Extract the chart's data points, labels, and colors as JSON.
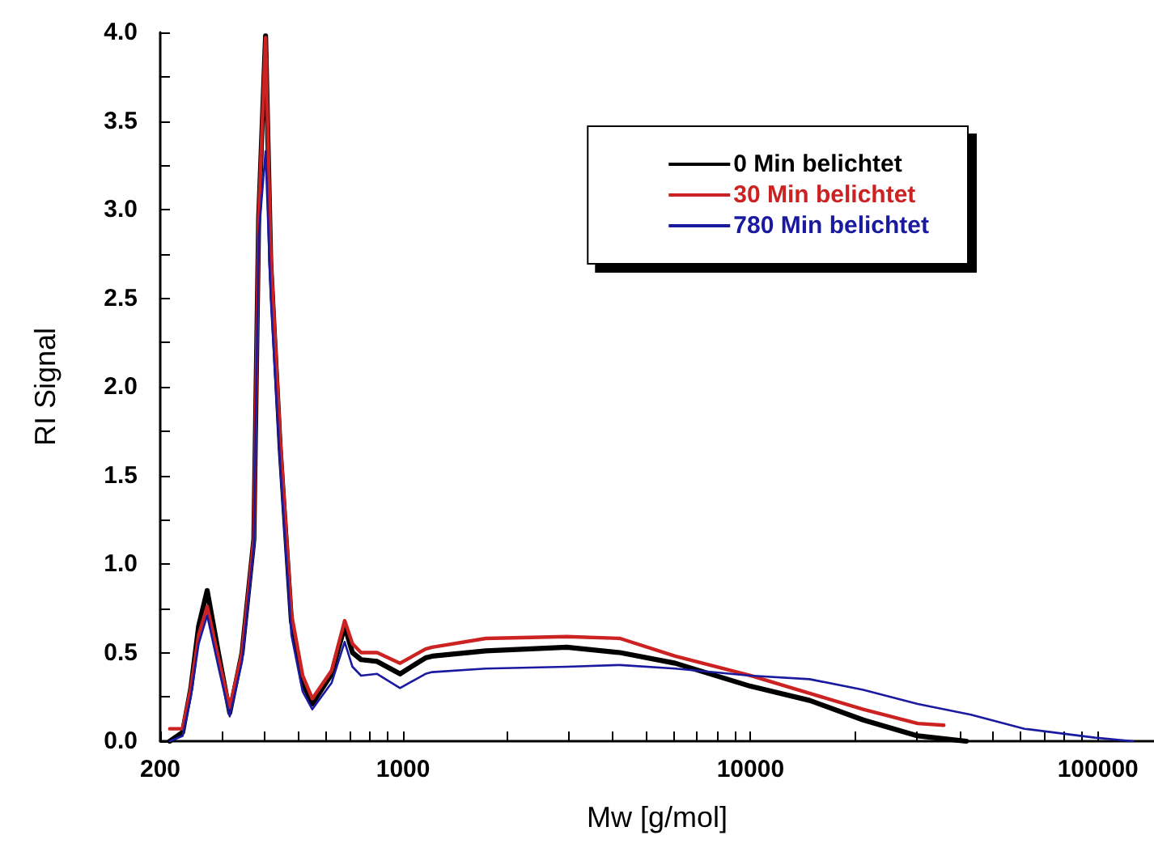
{
  "chart_data": {
    "type": "line",
    "xlabel": "Mw [g/mol]",
    "ylabel": "RI Signal",
    "log": "x",
    "xlim": [
      200,
      145000
    ],
    "xticks": [
      200,
      {
        "value": 300,
        "label": null
      },
      {
        "value": 400,
        "label": null
      },
      {
        "value": 500,
        "label": null
      },
      {
        "value": 600,
        "label": null
      },
      {
        "value": 700,
        "label": null
      },
      {
        "value": 800,
        "label": null
      },
      {
        "value": 900,
        "label": null
      },
      1000,
      {
        "value": 2000,
        "label": null
      },
      {
        "value": 3000,
        "label": null
      },
      {
        "value": 4000,
        "label": null
      },
      {
        "value": 5000,
        "label": null
      },
      {
        "value": 6000,
        "label": null
      },
      {
        "value": 7000,
        "label": null
      },
      {
        "value": 8000,
        "label": null
      },
      {
        "value": 9000,
        "label": null
      },
      10000,
      {
        "value": 20000,
        "label": null
      },
      {
        "value": 30000,
        "label": null
      },
      {
        "value": 40000,
        "label": null
      },
      {
        "value": 50000,
        "label": null
      },
      {
        "value": 60000,
        "label": null
      },
      {
        "value": 70000,
        "label": null
      },
      {
        "value": 80000,
        "label": null
      },
      {
        "value": 90000,
        "label": null
      },
      100000
    ],
    "ylim": [
      0,
      4
    ],
    "yticks": [
      {
        "value": 0,
        "label": "0.0"
      },
      {
        "value": 0.25,
        "label": null
      },
      {
        "value": 0.5,
        "label": "0.5"
      },
      {
        "value": 0.75,
        "label": null
      },
      {
        "value": 1,
        "label": "1.0"
      },
      {
        "value": 1.25,
        "label": null
      },
      {
        "value": 1.5,
        "label": "1.5"
      },
      {
        "value": 1.75,
        "label": null
      },
      {
        "value": 2,
        "label": "2.0"
      },
      {
        "value": 2.25,
        "label": null
      },
      {
        "value": 2.5,
        "label": "2.5"
      },
      {
        "value": 2.75,
        "label": null
      },
      {
        "value": 3,
        "label": "3.0"
      },
      {
        "value": 3.25,
        "label": null
      },
      {
        "value": 3.5,
        "label": "3.5"
      },
      {
        "value": 3.75,
        "label": null
      },
      {
        "value": 4,
        "label": "4.0"
      }
    ],
    "grid": false,
    "legend": "top right",
    "marker": "none",
    "line_style": "solid",
    "series": [
      {
        "name": "0 Min belichtet",
        "color": "#000000",
        "x": [
          213,
          232,
          245,
          258,
          273,
          294,
          317,
          344,
          372,
          384,
          402,
          416,
          443,
          477,
          514,
          548,
          623,
          679,
          715,
          757,
          842,
          980,
          1160,
          1213,
          1730,
          2960,
          4210,
          6070,
          10000,
          14800,
          21100,
          30300,
          41800
        ],
        "values": [
          0.0,
          0.05,
          0.3,
          0.65,
          0.85,
          0.5,
          0.16,
          0.5,
          1.14,
          2.95,
          3.98,
          2.7,
          1.65,
          0.68,
          0.33,
          0.21,
          0.38,
          0.65,
          0.5,
          0.46,
          0.45,
          0.38,
          0.47,
          0.48,
          0.51,
          0.53,
          0.5,
          0.44,
          0.31,
          0.23,
          0.12,
          0.03,
          0.0
        ]
      },
      {
        "name": "30 Min belichtet",
        "color": "#cc2222",
        "x": [
          213,
          232,
          245,
          258,
          273,
          294,
          317,
          344,
          372,
          384,
          402,
          416,
          443,
          477,
          514,
          548,
          623,
          679,
          715,
          757,
          842,
          980,
          1160,
          1213,
          1730,
          2960,
          4210,
          6070,
          10000,
          14800,
          21100,
          30300,
          36000
        ],
        "values": [
          0.07,
          0.07,
          0.3,
          0.6,
          0.76,
          0.47,
          0.19,
          0.5,
          1.14,
          2.95,
          3.97,
          2.75,
          1.7,
          0.72,
          0.37,
          0.24,
          0.4,
          0.68,
          0.55,
          0.5,
          0.5,
          0.44,
          0.52,
          0.53,
          0.58,
          0.59,
          0.58,
          0.48,
          0.37,
          0.27,
          0.18,
          0.1,
          0.09
        ]
      },
      {
        "name": "780 Min belichtet",
        "color": "#1a1aa0",
        "x": [
          213,
          232,
          245,
          258,
          273,
          294,
          317,
          344,
          372,
          384,
          402,
          416,
          443,
          477,
          514,
          548,
          623,
          679,
          715,
          757,
          842,
          980,
          1160,
          1213,
          1730,
          2960,
          4210,
          6070,
          10000,
          14800,
          21100,
          30300,
          43100,
          61500,
          98000,
          126000
        ],
        "values": [
          0.0,
          0.03,
          0.25,
          0.55,
          0.71,
          0.42,
          0.14,
          0.45,
          1.1,
          2.85,
          3.33,
          2.5,
          1.55,
          0.6,
          0.28,
          0.18,
          0.33,
          0.56,
          0.42,
          0.37,
          0.38,
          0.3,
          0.38,
          0.39,
          0.41,
          0.42,
          0.43,
          0.41,
          0.37,
          0.35,
          0.29,
          0.21,
          0.15,
          0.07,
          0.02,
          0.0
        ]
      }
    ]
  }
}
